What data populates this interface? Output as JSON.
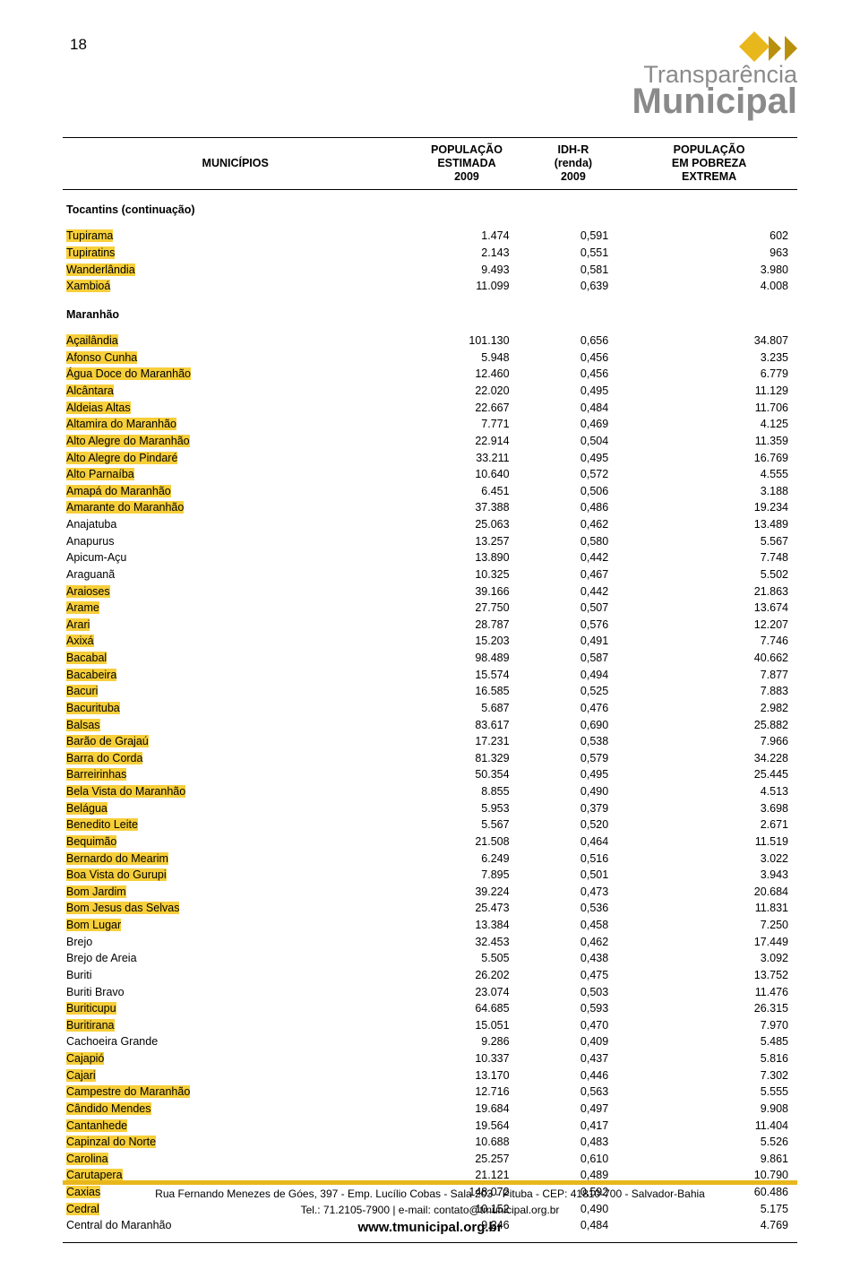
{
  "page_number": "18",
  "logo": {
    "text1": "Transparência",
    "text2": "Municipal",
    "colors": {
      "diamond": "#e8b71c",
      "chev": "#b98f0e"
    }
  },
  "table": {
    "headers": {
      "municipios": "MUNICÍPIOS",
      "pop_est": "POPULAÇÃO ESTIMADA 2009",
      "idh": "IDH-R (renda) 2009",
      "extrema": "POPULAÇÃO EM POBREZA EXTREMA"
    },
    "sections": [
      {
        "title": "Tocantins (continuação)",
        "rows": [
          {
            "m": "Tupirama",
            "p": "1.474",
            "i": "0,591",
            "e": "602",
            "hl": true
          },
          {
            "m": "Tupiratins",
            "p": "2.143",
            "i": "0,551",
            "e": "963",
            "hl": true
          },
          {
            "m": "Wanderlândia",
            "p": "9.493",
            "i": "0,581",
            "e": "3.980",
            "hl": true
          },
          {
            "m": "Xambioá",
            "p": "11.099",
            "i": "0,639",
            "e": "4.008",
            "hl": true
          }
        ]
      },
      {
        "title": "Maranhão",
        "rows": [
          {
            "m": "Açailândia",
            "p": "101.130",
            "i": "0,656",
            "e": "34.807",
            "hl": true
          },
          {
            "m": "Afonso Cunha",
            "p": "5.948",
            "i": "0,456",
            "e": "3.235",
            "hl": true
          },
          {
            "m": "Água Doce do Maranhão",
            "p": "12.460",
            "i": "0,456",
            "e": "6.779",
            "hl": true
          },
          {
            "m": "Alcântara",
            "p": "22.020",
            "i": "0,495",
            "e": "11.129",
            "hl": true
          },
          {
            "m": "Aldeias Altas",
            "p": "22.667",
            "i": "0,484",
            "e": "11.706",
            "hl": true
          },
          {
            "m": "Altamira do Maranhão",
            "p": "7.771",
            "i": "0,469",
            "e": "4.125",
            "hl": true
          },
          {
            "m": "Alto Alegre do Maranhão",
            "p": "22.914",
            "i": "0,504",
            "e": "11.359",
            "hl": true
          },
          {
            "m": "Alto Alegre do Pindaré",
            "p": "33.211",
            "i": "0,495",
            "e": "16.769",
            "hl": true
          },
          {
            "m": "Alto Parnaíba",
            "p": "10.640",
            "i": "0,572",
            "e": "4.555",
            "hl": true
          },
          {
            "m": "Amapá do Maranhão",
            "p": "6.451",
            "i": "0,506",
            "e": "3.188",
            "hl": true
          },
          {
            "m": "Amarante do Maranhão",
            "p": "37.388",
            "i": "0,486",
            "e": "19.234",
            "hl": true
          },
          {
            "m": "Anajatuba",
            "p": "25.063",
            "i": "0,462",
            "e": "13.489",
            "hl": false
          },
          {
            "m": "Anapurus",
            "p": "13.257",
            "i": "0,580",
            "e": "5.567",
            "hl": false
          },
          {
            "m": "Apicum-Açu",
            "p": "13.890",
            "i": "0,442",
            "e": "7.748",
            "hl": false
          },
          {
            "m": "Araguanã",
            "p": "10.325",
            "i": "0,467",
            "e": "5.502",
            "hl": false
          },
          {
            "m": "Araioses",
            "p": "39.166",
            "i": "0,442",
            "e": "21.863",
            "hl": true
          },
          {
            "m": "Arame",
            "p": "27.750",
            "i": "0,507",
            "e": "13.674",
            "hl": true
          },
          {
            "m": "Arari",
            "p": "28.787",
            "i": "0,576",
            "e": "12.207",
            "hl": true
          },
          {
            "m": "Axixá",
            "p": "15.203",
            "i": "0,491",
            "e": "7.746",
            "hl": true
          },
          {
            "m": "Bacabal",
            "p": "98.489",
            "i": "0,587",
            "e": "40.662",
            "hl": true
          },
          {
            "m": "Bacabeira",
            "p": "15.574",
            "i": "0,494",
            "e": "7.877",
            "hl": true
          },
          {
            "m": "Bacuri",
            "p": "16.585",
            "i": "0,525",
            "e": "7.883",
            "hl": true
          },
          {
            "m": "Bacurituba",
            "p": "5.687",
            "i": "0,476",
            "e": "2.982",
            "hl": true
          },
          {
            "m": "Balsas",
            "p": "83.617",
            "i": "0,690",
            "e": "25.882",
            "hl": true
          },
          {
            "m": "Barão de Grajaú",
            "p": "17.231",
            "i": "0,538",
            "e": "7.966",
            "hl": true
          },
          {
            "m": "Barra do Corda",
            "p": "81.329",
            "i": "0,579",
            "e": "34.228",
            "hl": true
          },
          {
            "m": "Barreirinhas",
            "p": "50.354",
            "i": "0,495",
            "e": "25.445",
            "hl": true
          },
          {
            "m": "Bela Vista do Maranhão",
            "p": "8.855",
            "i": "0,490",
            "e": "4.513",
            "hl": true
          },
          {
            "m": "Belágua",
            "p": "5.953",
            "i": "0,379",
            "e": "3.698",
            "hl": true
          },
          {
            "m": "Benedito Leite",
            "p": "5.567",
            "i": "0,520",
            "e": "2.671",
            "hl": true
          },
          {
            "m": "Bequimão",
            "p": "21.508",
            "i": "0,464",
            "e": "11.519",
            "hl": true
          },
          {
            "m": "Bernardo do Mearim",
            "p": "6.249",
            "i": "0,516",
            "e": "3.022",
            "hl": true
          },
          {
            "m": "Boa Vista do Gurupi",
            "p": "7.895",
            "i": "0,501",
            "e": "3.943",
            "hl": true
          },
          {
            "m": "Bom Jardim",
            "p": "39.224",
            "i": "0,473",
            "e": "20.684",
            "hl": true
          },
          {
            "m": "Bom Jesus das Selvas",
            "p": "25.473",
            "i": "0,536",
            "e": "11.831",
            "hl": true
          },
          {
            "m": "Bom Lugar",
            "p": "13.384",
            "i": "0,458",
            "e": "7.250",
            "hl": true
          },
          {
            "m": "Brejo",
            "p": "32.453",
            "i": "0,462",
            "e": "17.449",
            "hl": false
          },
          {
            "m": "Brejo de Areia",
            "p": "5.505",
            "i": "0,438",
            "e": "3.092",
            "hl": false
          },
          {
            "m": "Buriti",
            "p": "26.202",
            "i": "0,475",
            "e": "13.752",
            "hl": false
          },
          {
            "m": "Buriti Bravo",
            "p": "23.074",
            "i": "0,503",
            "e": "11.476",
            "hl": false
          },
          {
            "m": "Buriticupu",
            "p": "64.685",
            "i": "0,593",
            "e": "26.315",
            "hl": true
          },
          {
            "m": "Buritirana",
            "p": "15.051",
            "i": "0,470",
            "e": "7.970",
            "hl": true
          },
          {
            "m": "Cachoeira Grande",
            "p": "9.286",
            "i": "0,409",
            "e": "5.485",
            "hl": false
          },
          {
            "m": "Cajapió",
            "p": "10.337",
            "i": "0,437",
            "e": "5.816",
            "hl": true
          },
          {
            "m": "Cajari",
            "p": "13.170",
            "i": "0,446",
            "e": "7.302",
            "hl": true
          },
          {
            "m": "Campestre do Maranhão",
            "p": "12.716",
            "i": "0,563",
            "e": "5.555",
            "hl": true
          },
          {
            "m": "Cândido Mendes",
            "p": "19.684",
            "i": "0,497",
            "e": "9.908",
            "hl": true
          },
          {
            "m": "Cantanhede",
            "p": "19.564",
            "i": "0,417",
            "e": "11.404",
            "hl": true
          },
          {
            "m": "Capinzal do Norte",
            "p": "10.688",
            "i": "0,483",
            "e": "5.526",
            "hl": true
          },
          {
            "m": "Carolina",
            "p": "25.257",
            "i": "0,610",
            "e": "9.861",
            "hl": true
          },
          {
            "m": "Carutapera",
            "p": "21.121",
            "i": "0,489",
            "e": "10.790",
            "hl": true
          },
          {
            "m": "Caxias",
            "p": "148.072",
            "i": "0,592",
            "e": "60.486",
            "hl": true
          },
          {
            "m": "Cedral",
            "p": "10.152",
            "i": "0,490",
            "e": "5.175",
            "hl": true
          },
          {
            "m": "Central do Maranhão",
            "p": "9.246",
            "i": "0,484",
            "e": "4.769",
            "hl": false
          }
        ]
      }
    ]
  },
  "footer": {
    "line1": "Rua Fernando Menezes de Góes, 397 - Emp. Lucílio Cobas - Sala 203 - Pituba - CEP: 41810-700 - Salvador-Bahia",
    "line2": "Tel.: 71.2105-7900 | e-mail: contato@tmunicipal.org.br",
    "web": "www.tmunicipal.org.br"
  }
}
